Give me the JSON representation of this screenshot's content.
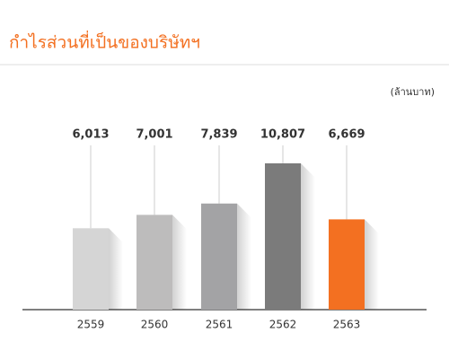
{
  "chart_data": {
    "type": "bar",
    "title": "กำไรส่วนที่เป็นของบริษัทฯ",
    "unit_label": "(ล้านบาท)",
    "categories": [
      "2559",
      "2560",
      "2561",
      "2562",
      "2563"
    ],
    "values": [
      6013,
      7001,
      7839,
      10807,
      6669
    ],
    "value_labels": [
      "6,013",
      "7,001",
      "7,839",
      "10,807",
      "6,669"
    ],
    "colors": [
      "#d5d5d5",
      "#bdbcbc",
      "#a3a3a5",
      "#7b7b7b",
      "#f37021"
    ]
  }
}
